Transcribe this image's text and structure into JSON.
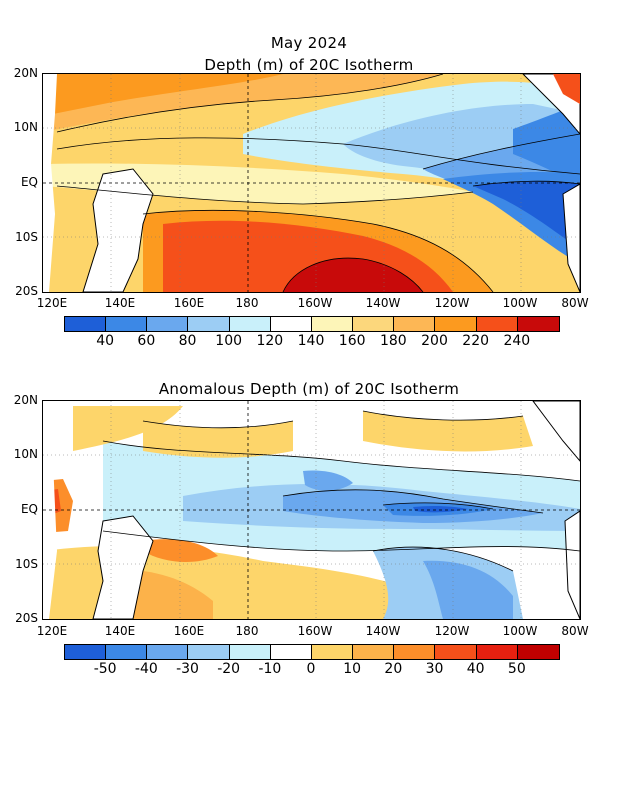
{
  "figure": {
    "month_title": "May 2024",
    "top_title": "Depth (m) of 20C Isotherm",
    "bottom_title": "Anomalous Depth (m) of 20C Isotherm"
  },
  "axes": {
    "lat_labels": [
      "20N",
      "10N",
      "EQ",
      "10S",
      "20S"
    ],
    "lon_labels": [
      "120E",
      "140E",
      "160E",
      "180",
      "160W",
      "140W",
      "120W",
      "100W",
      "80W"
    ]
  },
  "top_colorbar": {
    "colors": [
      "#1e5fd8",
      "#3c88e6",
      "#6aa8ee",
      "#9ccdf4",
      "#c9f0fa",
      "#ffffff",
      "#fdf5b8",
      "#fcd77c",
      "#fdb755",
      "#fc9a1f",
      "#f5501a",
      "#c80a0a"
    ],
    "labels": [
      "40",
      "60",
      "80",
      "100",
      "120",
      "140",
      "160",
      "180",
      "200",
      "220",
      "240"
    ]
  },
  "bottom_colorbar": {
    "colors": [
      "#1e5fd8",
      "#3c88e6",
      "#6aa8ee",
      "#9ccdf4",
      "#c9f0fa",
      "#ffffff",
      "#fdd56a",
      "#fcb24a",
      "#fc8e2a",
      "#f5501a",
      "#e62010",
      "#c00000"
    ],
    "labels": [
      "-50",
      "-40",
      "-30",
      "-20",
      "-10",
      "0",
      "10",
      "20",
      "30",
      "40",
      "50"
    ]
  },
  "chart_data": [
    {
      "type": "heatmap",
      "title": "Depth (m) of 20C Isotherm",
      "units": "m",
      "lat_range": [
        -20,
        20
      ],
      "lon_range": [
        120,
        280
      ],
      "features": [
        {
          "region": "western Pacific 10S-20S, 160E-140W",
          "value": 240
        },
        {
          "region": "western Pacific 20N-10N",
          "value": 200
        },
        {
          "region": "central Pacific EQ",
          "value": 140
        },
        {
          "region": "eastern Pacific EQ 120W-80W",
          "value": 40
        },
        {
          "region": "northeast Pacific 10N, 100W",
          "value": 60
        }
      ]
    },
    {
      "type": "heatmap",
      "title": "Anomalous Depth (m) of 20C Isotherm",
      "units": "m",
      "lat_range": [
        -20,
        20
      ],
      "lon_range": [
        120,
        280
      ],
      "features": [
        {
          "region": "equatorial Pacific EQ 140W-110W",
          "value": -50
        },
        {
          "region": "central equatorial 170W-140W",
          "value": -20
        },
        {
          "region": "western Pacific 10N-20N, 140E-180",
          "value": 10
        },
        {
          "region": "far western EQ near 120E",
          "value": 40
        },
        {
          "region": "southwest Pacific 10S near 155E",
          "value": 30
        },
        {
          "region": "southeast Pacific 10S-20S, 130W-100W",
          "value": -20
        }
      ]
    }
  ]
}
